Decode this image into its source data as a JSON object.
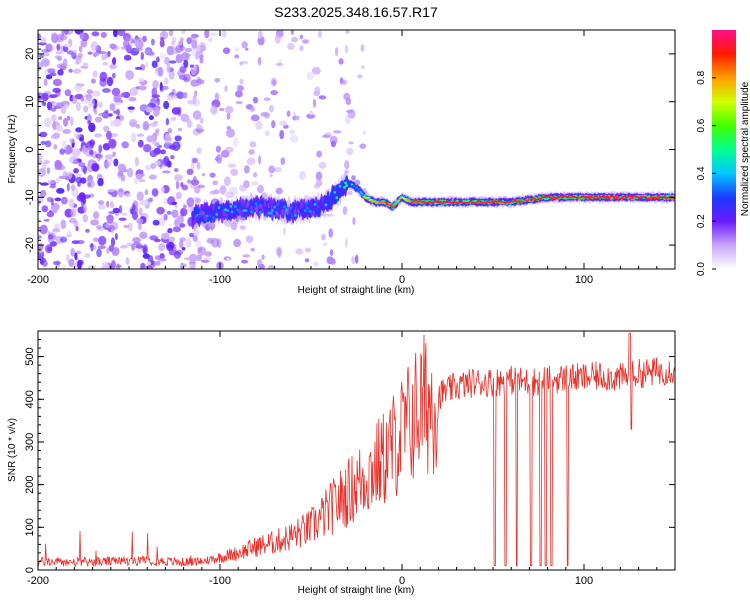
{
  "title": "S233.2025.348.16.57.R17",
  "chart_data": [
    {
      "type": "heatmap",
      "xlabel": "Height of straight line (km)",
      "ylabel": "Frequency (Hz)",
      "xlim": [
        -200,
        150
      ],
      "ylim": [
        -25,
        25
      ],
      "xticks": [
        "-200",
        "-100",
        "0",
        "100"
      ],
      "yticks": [
        "-20",
        "-10",
        "0",
        "10",
        "20"
      ],
      "colorbar": {
        "label": "Normalized spectral amplitude",
        "range": [
          0,
          1
        ],
        "ticks": [
          "0.0",
          "0.2",
          "0.4",
          "0.6",
          "0.8"
        ]
      },
      "signal_track": {
        "x": [
          -115,
          -100,
          -80,
          -60,
          -45,
          -35,
          -30,
          -25,
          -20,
          -15,
          -10,
          -5,
          0,
          5,
          10,
          20,
          40,
          60,
          80,
          100,
          120,
          150
        ],
        "freq": [
          -14,
          -13,
          -12,
          -13,
          -12,
          -9,
          -7,
          -8,
          -10,
          -11,
          -11,
          -12,
          -10,
          -11,
          -11,
          -11,
          -11,
          -11,
          -10,
          -10,
          -10,
          -10
        ],
        "amplitude": [
          0.35,
          0.4,
          0.35,
          0.35,
          0.4,
          0.45,
          0.5,
          0.6,
          0.7,
          0.8,
          0.85,
          0.9,
          0.7,
          0.85,
          0.9,
          0.95,
          0.9,
          0.9,
          0.95,
          0.9,
          0.95,
          0.9
        ]
      }
    },
    {
      "type": "line",
      "xlabel": "Height of straight line (km)",
      "ylabel": "SNR (10 * v/v)",
      "xlim": [
        -200,
        150
      ],
      "ylim": [
        0,
        560
      ],
      "xticks": [
        "-200",
        "-100",
        "0",
        "100"
      ],
      "yticks": [
        "0",
        "100",
        "200",
        "300",
        "400",
        "500"
      ],
      "color": "#e8302a",
      "series": [
        {
          "name": "SNR",
          "x": [
            -200,
            -180,
            -160,
            -140,
            -120,
            -110,
            -100,
            -90,
            -80,
            -70,
            -60,
            -50,
            -40,
            -30,
            -20,
            -10,
            0,
            10,
            20,
            30,
            40,
            50,
            60,
            70,
            80,
            90,
            100,
            110,
            120,
            130,
            140,
            150
          ],
          "values": [
            20,
            18,
            20,
            22,
            18,
            20,
            30,
            40,
            55,
            65,
            80,
            100,
            140,
            180,
            220,
            260,
            320,
            380,
            410,
            430,
            440,
            440,
            445,
            440,
            445,
            450,
            450,
            455,
            450,
            460,
            465,
            470
          ]
        }
      ],
      "dropouts_x": [
        51,
        57,
        63,
        71,
        76,
        79,
        82,
        91
      ]
    }
  ]
}
